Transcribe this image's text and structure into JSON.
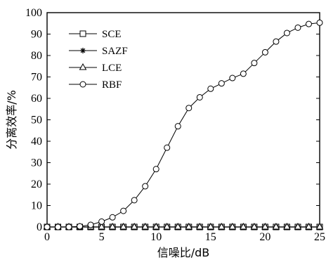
{
  "chart_data": {
    "type": "line",
    "title": "",
    "xlabel": "信噪比/dB",
    "ylabel": "分离效率/%",
    "xlim": [
      0,
      25
    ],
    "ylim": [
      0,
      100
    ],
    "x_ticks": [
      "0",
      "5",
      "10",
      "15",
      "20",
      "25"
    ],
    "y_ticks": [
      "0",
      "10",
      "20",
      "30",
      "40",
      "50",
      "60",
      "70",
      "80",
      "90",
      "100"
    ],
    "grid": false,
    "legend_position": "top-left",
    "x": [
      0,
      1,
      2,
      3,
      4,
      5,
      6,
      7,
      8,
      9,
      10,
      11,
      12,
      13,
      14,
      15,
      16,
      17,
      18,
      19,
      20,
      21,
      22,
      23,
      24,
      25
    ],
    "series": [
      {
        "name": "SCE",
        "marker": "square",
        "values": [
          0,
          0,
          0,
          0,
          0,
          0,
          0,
          0,
          0,
          0,
          0,
          0,
          0,
          0,
          0,
          0,
          0,
          0,
          0,
          0,
          0,
          0,
          0,
          0,
          0,
          0
        ]
      },
      {
        "name": "SAZF",
        "marker": "star",
        "values": [
          0,
          0,
          0,
          0,
          0,
          0,
          0,
          0,
          0,
          0,
          0,
          0,
          0,
          0,
          0,
          0,
          0,
          0,
          0,
          0,
          0,
          0,
          0,
          0,
          0,
          0
        ]
      },
      {
        "name": "LCE",
        "marker": "triangle",
        "values": [
          0,
          0,
          0,
          0,
          0,
          0,
          0,
          0,
          0,
          0,
          0,
          0,
          0,
          0,
          0,
          0,
          0,
          0,
          0,
          0,
          0,
          0,
          0,
          0,
          0,
          0
        ]
      },
      {
        "name": "RBF",
        "marker": "circle",
        "values": [
          0,
          0,
          0,
          0.3,
          1,
          2.5,
          4.5,
          7.5,
          12.5,
          19,
          27,
          37,
          47,
          55.5,
          60.5,
          64.5,
          67,
          69.5,
          71.5,
          76.5,
          81.5,
          86.5,
          90.5,
          93,
          94.7,
          95.3
        ]
      }
    ]
  }
}
